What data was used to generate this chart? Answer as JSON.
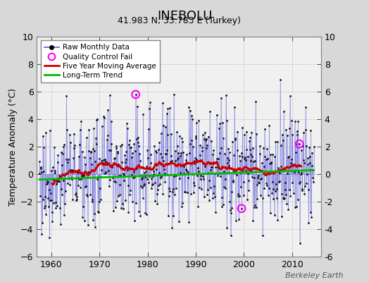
{
  "title": "INEBOLU",
  "subtitle": "41.983 N, 33.783 E (Turkey)",
  "ylabel": "Temperature Anomaly (°C)",
  "credit": "Berkeley Earth",
  "xlim": [
    1957,
    2016
  ],
  "ylim": [
    -6,
    10
  ],
  "yticks": [
    -6,
    -4,
    -2,
    0,
    2,
    4,
    6,
    8,
    10
  ],
  "xticks": [
    1960,
    1970,
    1980,
    1990,
    2000,
    2010
  ],
  "bg_color": "#d8d8d8",
  "plot_bg_color": "#f0f0f0",
  "raw_line_color": "#5555dd",
  "raw_dot_color": "#111111",
  "raw_line_alpha": 0.45,
  "ma_color": "#cc0000",
  "trend_color": "#00bb00",
  "qc_color": "#ff00ff",
  "seed": 77,
  "n_points": 648,
  "start_year": 1957.5,
  "end_year": 2014.5,
  "qc_points": [
    [
      1977.5,
      5.8
    ],
    [
      1999.5,
      -2.5
    ],
    [
      2011.5,
      2.2
    ]
  ]
}
